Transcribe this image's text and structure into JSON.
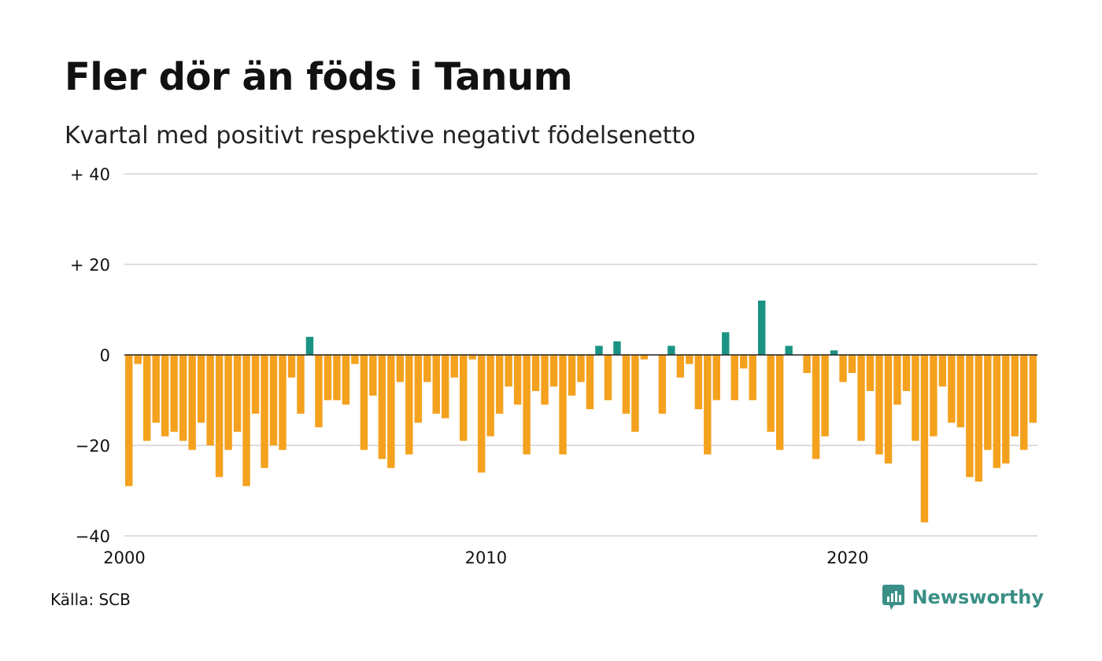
{
  "header": {
    "title": "Fler dör än föds i Tanum",
    "subtitle": "Kvartal med positivt respektive negativt födelsenetto"
  },
  "footer": {
    "source": "Källa: SCB",
    "brand": "Newsworthy"
  },
  "colors": {
    "positive": "#1a9384",
    "negative": "#f4a11e",
    "grid": "#dddddd",
    "zero_line": "#222222",
    "brand": "#3a8f86"
  },
  "chart_data": {
    "type": "bar",
    "title": "Fler dör än föds i Tanum",
    "subtitle": "Kvartal med positivt respektive negativt födelsenetto",
    "xlabel": "",
    "ylabel": "",
    "ylim": [
      -40,
      40
    ],
    "yticks": [
      {
        "value": 40,
        "label": "+ 40"
      },
      {
        "value": 20,
        "label": "+ 20"
      },
      {
        "value": 0,
        "label": "0"
      },
      {
        "value": -20,
        "label": "−20"
      },
      {
        "value": -40,
        "label": "−40"
      }
    ],
    "xticks": [
      {
        "year": 2000,
        "label": "2000"
      },
      {
        "year": 2010,
        "label": "2010"
      },
      {
        "year": 2020,
        "label": "2020"
      }
    ],
    "start_year": 2000,
    "start_quarter": 1,
    "grid": true,
    "values": [
      -29,
      -2,
      -19,
      -15,
      -18,
      -17,
      -19,
      -21,
      -15,
      -20,
      -27,
      -21,
      -17,
      -29,
      -13,
      -25,
      -20,
      -21,
      -5,
      -13,
      4,
      -16,
      -10,
      -10,
      -11,
      -2,
      -21,
      -9,
      -23,
      -25,
      -6,
      -22,
      -15,
      -6,
      -13,
      -14,
      -5,
      -19,
      -1,
      -26,
      -18,
      -13,
      -7,
      -11,
      -22,
      -8,
      -11,
      -7,
      -22,
      -9,
      -6,
      -12,
      2,
      -10,
      3,
      -13,
      -17,
      -1,
      0,
      -13,
      2,
      -5,
      -2,
      -12,
      -22,
      -10,
      5,
      -10,
      -3,
      -10,
      12,
      -17,
      -21,
      2,
      0,
      -4,
      -23,
      -18,
      1,
      -6,
      -4,
      -19,
      -8,
      -22,
      -24,
      -11,
      -8,
      -19,
      -37,
      -18,
      -7,
      -15,
      -16,
      -27,
      -28,
      -21,
      -25,
      -24,
      -18,
      -21,
      -15
    ]
  }
}
